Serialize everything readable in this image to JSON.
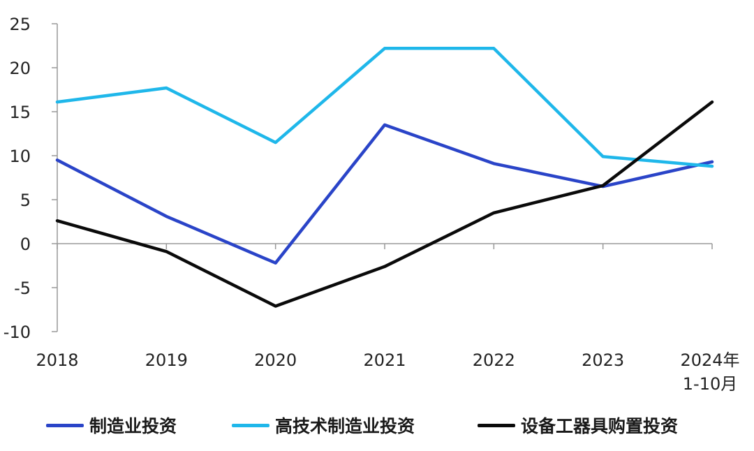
{
  "chart_data": {
    "type": "line",
    "categories": [
      "2018",
      "2019",
      "2020",
      "2021",
      "2022",
      "2023",
      "2024年\n1-10月"
    ],
    "series": [
      {
        "name": "制造业投资",
        "color": "#2a44c8",
        "values": [
          9.5,
          3.1,
          -2.2,
          13.5,
          9.1,
          6.5,
          9.3
        ]
      },
      {
        "name": "高技术制造业投资",
        "color": "#1fb7ea",
        "values": [
          16.1,
          17.7,
          11.5,
          22.2,
          22.2,
          9.9,
          8.8
        ]
      },
      {
        "name": "设备工器具购置投资",
        "color": "#0a0a0a",
        "values": [
          2.6,
          -0.9,
          -7.1,
          -2.6,
          3.5,
          6.6,
          16.1
        ]
      }
    ],
    "yticks": [
      -10,
      -5,
      0,
      5,
      10,
      15,
      20,
      25
    ],
    "ylim": [
      -10,
      25
    ],
    "title": "",
    "xlabel": "",
    "ylabel": "",
    "grid": false,
    "legend_position": "bottom"
  }
}
